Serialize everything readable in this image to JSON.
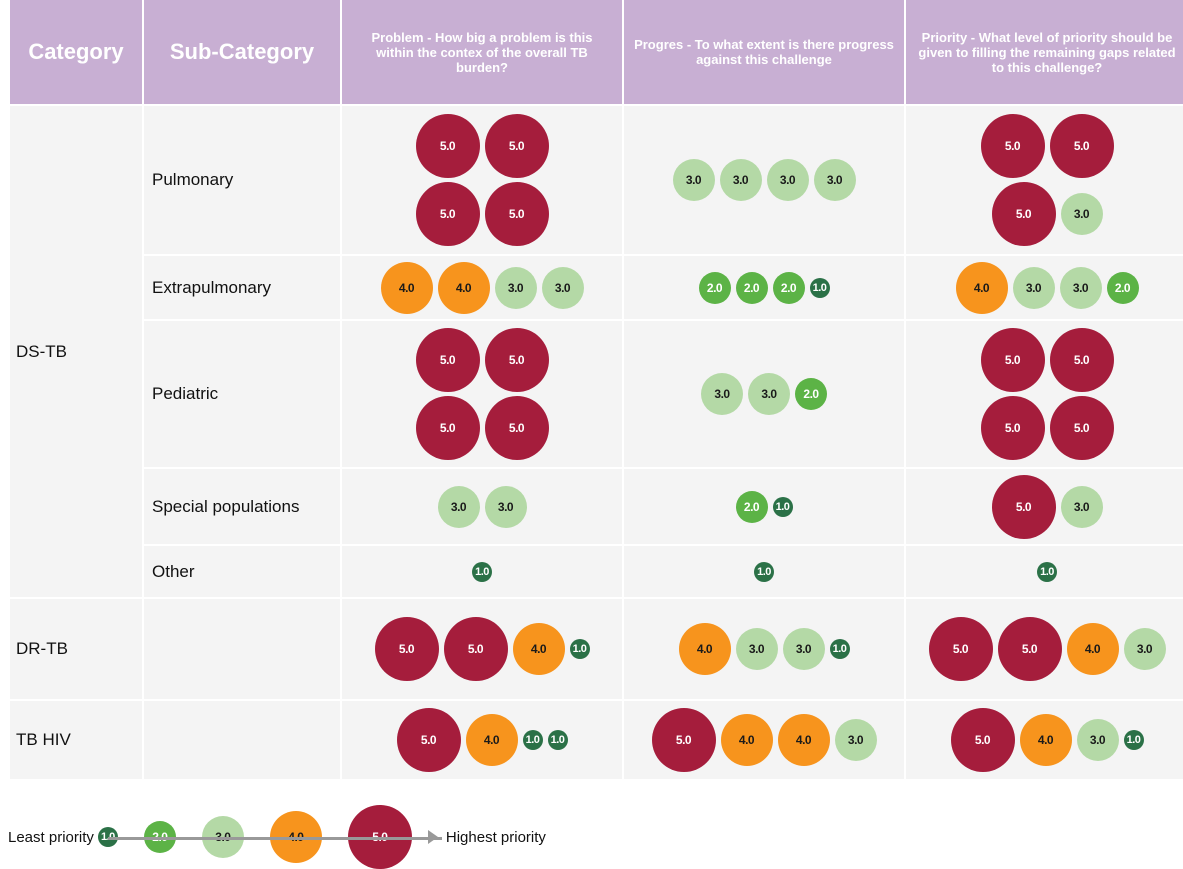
{
  "header": [
    "Category",
    "Sub-Category",
    "Problem - How big a problem is this within the contex of the overall TB burden?",
    "Progres - To what extent is there progress against this challenge",
    "Priority - What level of priority should be given to filling the remaining gaps related to this challenge?"
  ],
  "groups": [
    {
      "category": "DS-TB",
      "rows": [
        {
          "sub": "Pulmonary",
          "cells": [
            [
              [
                "5.0",
                "5.0"
              ],
              [
                "5.0",
                "5.0"
              ]
            ],
            [
              [
                "3.0",
                "3.0",
                "3.0",
                "3.0"
              ]
            ],
            [
              [
                "5.0",
                "5.0"
              ],
              [
                "5.0",
                "3.0"
              ]
            ]
          ]
        },
        {
          "sub": "Extrapulmonary",
          "cells": [
            [
              [
                "4.0",
                "4.0",
                "3.0",
                "3.0"
              ]
            ],
            [
              [
                "2.0",
                "2.0",
                "2.0",
                "1.0"
              ]
            ],
            [
              [
                "4.0",
                "3.0",
                "3.0",
                "2.0"
              ]
            ]
          ]
        },
        {
          "sub": "Pediatric",
          "cells": [
            [
              [
                "5.0",
                "5.0"
              ],
              [
                "5.0",
                "5.0"
              ]
            ],
            [
              [
                "3.0",
                "3.0",
                "2.0"
              ]
            ],
            [
              [
                "5.0",
                "5.0"
              ],
              [
                "5.0",
                "5.0"
              ]
            ]
          ]
        },
        {
          "sub": "Special populations",
          "cells": [
            [
              [
                "3.0",
                "3.0"
              ]
            ],
            [
              [
                "2.0",
                "1.0"
              ]
            ],
            [
              [
                "5.0",
                "3.0"
              ]
            ]
          ]
        },
        {
          "sub": "Other",
          "cells": [
            [
              [
                "1.0"
              ]
            ],
            [
              [
                "1.0"
              ]
            ],
            [
              [
                "1.0"
              ]
            ]
          ]
        }
      ]
    },
    {
      "category": "DR-TB",
      "rows": [
        {
          "cells": [
            [
              [
                "5.0",
                "5.0",
                "4.0",
                "1.0"
              ]
            ],
            [
              [
                "4.0",
                "3.0",
                "3.0",
                "1.0"
              ]
            ],
            [
              [
                "5.0",
                "5.0",
                "4.0",
                "3.0"
              ]
            ]
          ]
        }
      ]
    },
    {
      "category": "TB HIV",
      "rows": [
        {
          "cells": [
            [
              [
                "5.0",
                "4.0",
                "1.0",
                "1.0"
              ]
            ],
            [
              [
                "5.0",
                "4.0",
                "4.0",
                "3.0"
              ]
            ],
            [
              [
                "5.0",
                "4.0",
                "3.0",
                "1.0"
              ]
            ]
          ]
        }
      ]
    }
  ],
  "legend": {
    "low": "Least priority",
    "high": "Highest priority",
    "items": [
      {
        "label": "1.0",
        "color": "#2b7147",
        "text_color": "#ffffff"
      },
      {
        "label": "2.0",
        "color": "#5cb346",
        "text_color": "#ffffff"
      },
      {
        "label": "3.0",
        "color": "#b4d9a6",
        "text_color": "#1a1a1a"
      },
      {
        "label": "4.0",
        "color": "#f7941d",
        "text_color": "#1a1a1a"
      },
      {
        "label": "5.0",
        "color": "#a51d3c",
        "text_color": "#ffffff"
      }
    ]
  }
}
